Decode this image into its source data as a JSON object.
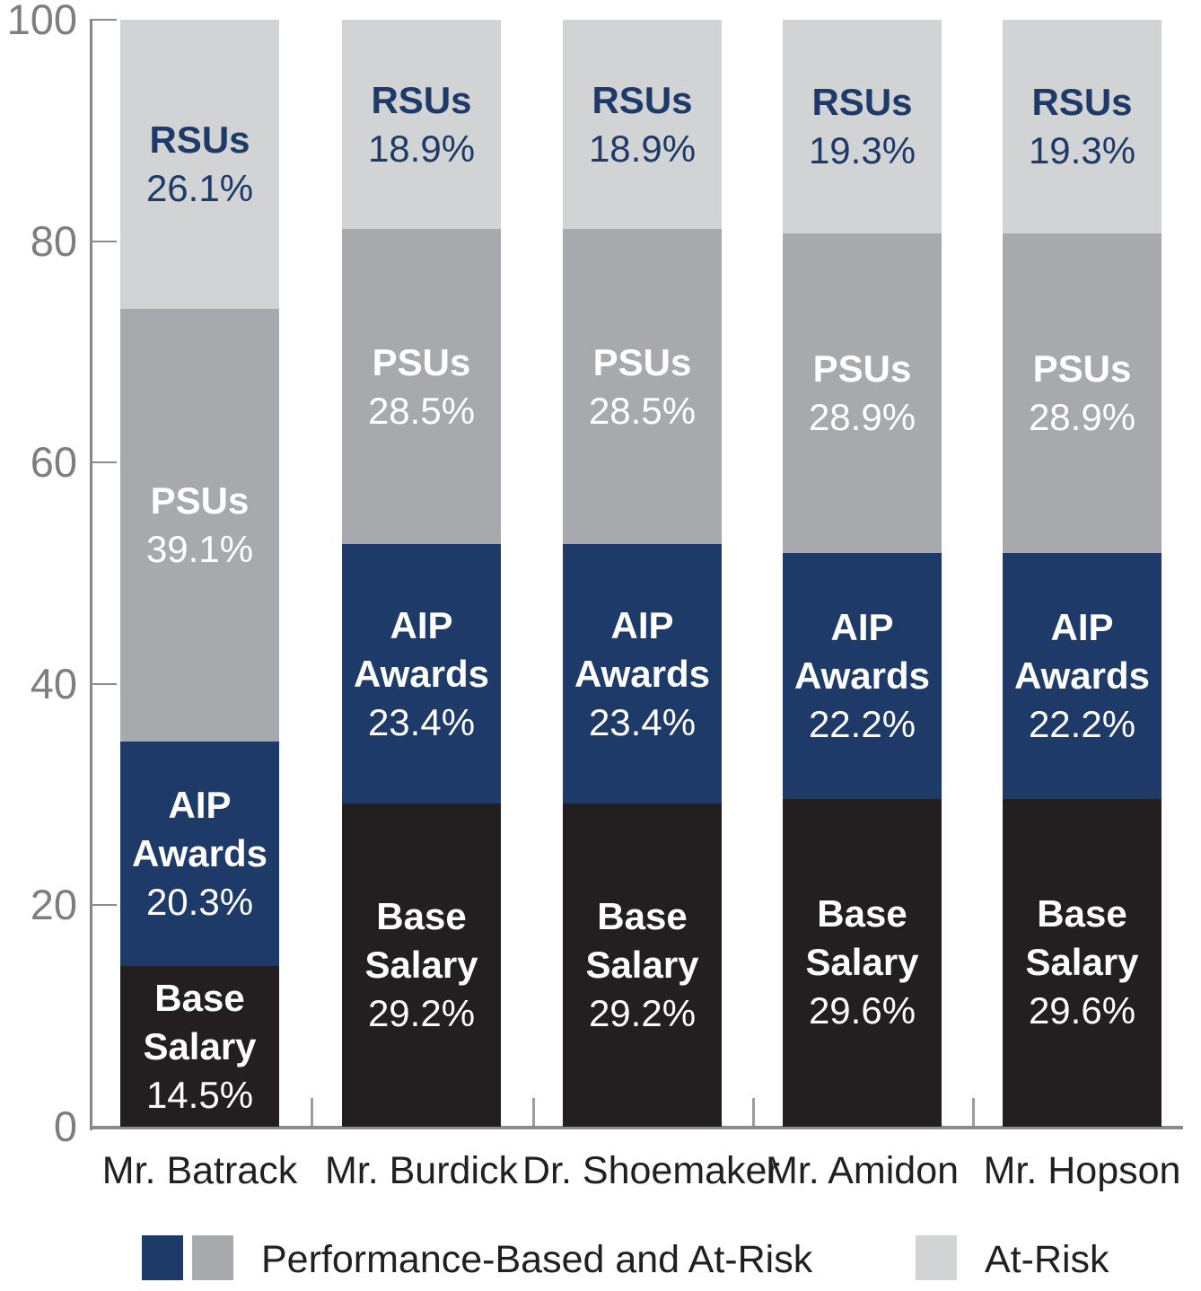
{
  "chart_data": {
    "type": "bar",
    "stacked": true,
    "orientation": "vertical",
    "title": "",
    "xlabel": "",
    "ylabel": "",
    "ylim": [
      0,
      100
    ],
    "yticks": [
      0,
      20,
      40,
      60,
      80,
      100
    ],
    "ytick_labels": [
      "0",
      "20",
      "40",
      "60",
      "80",
      "100"
    ],
    "grid": false,
    "legend_position": "bottom",
    "categories": [
      "Mr. Batrack",
      "Mr. Burdick",
      "Dr. Shoemaker",
      "Mr. Amidon",
      "Mr. Hopson"
    ],
    "series": [
      {
        "name": "Base Salary",
        "label_lines": [
          "Base",
          "Salary"
        ],
        "color": "#231f20",
        "label_color": "#ffffff",
        "values": [
          14.5,
          29.2,
          29.2,
          29.6,
          29.6
        ],
        "values_display": [
          "14.5%",
          "29.2%",
          "29.2%",
          "29.6%",
          "29.6%"
        ]
      },
      {
        "name": "AIP Awards",
        "label_lines": [
          "AIP",
          "Awards"
        ],
        "color": "#1e3a68",
        "label_color": "#ffffff",
        "values": [
          20.3,
          23.4,
          23.4,
          22.2,
          22.2
        ],
        "values_display": [
          "20.3%",
          "23.4%",
          "23.4%",
          "22.2%",
          "22.2%"
        ]
      },
      {
        "name": "PSUs",
        "label_lines": [
          "PSUs"
        ],
        "color": "#a8a9ad",
        "label_color": "#ffffff",
        "values": [
          39.1,
          28.5,
          28.5,
          28.9,
          28.9
        ],
        "values_display": [
          "39.1%",
          "28.5%",
          "28.5%",
          "28.9%",
          "28.9%"
        ]
      },
      {
        "name": "RSUs",
        "label_lines": [
          "RSUs"
        ],
        "color": "#d2d3d5",
        "label_color": "#1e3a68",
        "values": [
          26.1,
          18.9,
          18.9,
          19.3,
          19.3
        ],
        "values_display": [
          "26.1%",
          "18.9%",
          "18.9%",
          "19.3%",
          "19.3%"
        ]
      }
    ]
  },
  "legend": {
    "items": [
      {
        "label": "Performance-Based and At-Risk",
        "swatches": [
          "#1e3a68",
          "#a8a9ad"
        ]
      },
      {
        "label": "At-Risk",
        "swatches": [
          "#d2d3d5"
        ]
      }
    ]
  },
  "colors": {
    "background": "#ffffff",
    "axis": "#86878b",
    "tick_label": "#7d7e82",
    "x_label": "#231f20",
    "navy": "#1e3a68",
    "black": "#231f20",
    "mid_gray": "#a8a9ad",
    "light_gray": "#d2d3d5"
  }
}
